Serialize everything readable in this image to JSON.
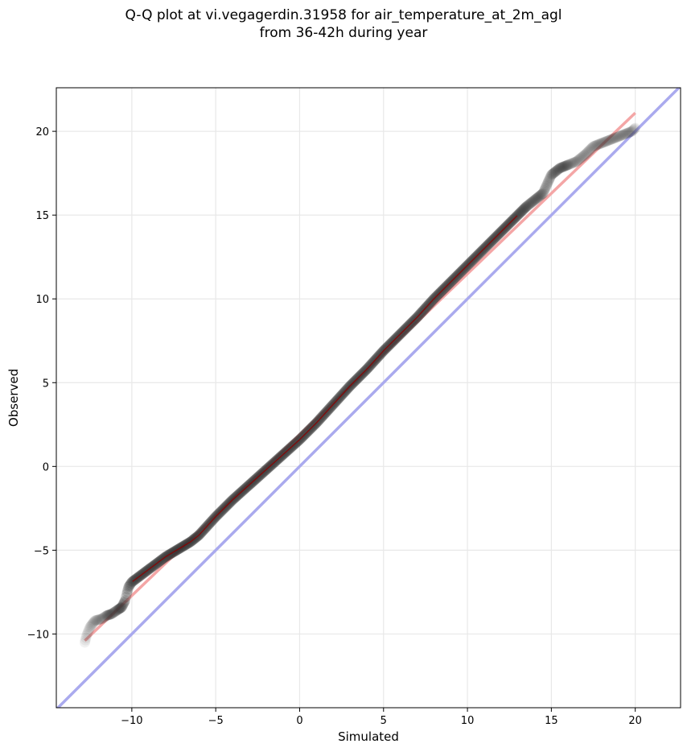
{
  "chart_data": {
    "type": "scatter",
    "title": "Q-Q plot at vi.vegagerdin.31958 for air_temperature_at_2m_agl",
    "subtitle": "from 36-42h during year",
    "xlabel": "Simulated",
    "ylabel": "Observed",
    "xlim": [
      -14.5,
      22.7
    ],
    "ylim": [
      -14.4,
      22.6
    ],
    "xticks": [
      -10,
      -5,
      0,
      5,
      10,
      15,
      20
    ],
    "xtick_labels": [
      "−10",
      "−5",
      "0",
      "5",
      "10",
      "15",
      "20"
    ],
    "yticks": [
      -10,
      -5,
      0,
      5,
      10,
      15,
      20
    ],
    "ytick_labels": [
      "−10",
      "−5",
      "0",
      "5",
      "10",
      "15",
      "20"
    ],
    "grid": true,
    "identity_line": {
      "from": [
        -14.5,
        -14.5
      ],
      "to": [
        22.7,
        22.7
      ],
      "color": "#aaaaee"
    },
    "fit_line": {
      "from": [
        -12.8,
        -10.4
      ],
      "to": [
        20.0,
        21.1
      ],
      "color": "#f4a6a6"
    },
    "colors": {
      "points": "#333333",
      "fit": "#f4a6a6",
      "identity": "#aaaaee",
      "median": "#8b0000"
    },
    "quantiles": {
      "x": [
        -12.8,
        -12.7,
        -12.5,
        -12.2,
        -11.8,
        -11.5,
        -11.2,
        -10.9,
        -10.6,
        -10.4,
        -10.3,
        -10.2,
        -10.0,
        -9.6,
        -9.2,
        -8.8,
        -8.4,
        -8.0,
        -7.5,
        -7.0,
        -6.5,
        -6.0,
        -5.0,
        -4.0,
        -3.0,
        -2.0,
        -1.0,
        0.0,
        1.0,
        2.0,
        3.0,
        4.0,
        5.0,
        6.0,
        7.0,
        8.0,
        9.0,
        10.0,
        11.0,
        12.0,
        12.8,
        13.5,
        14.0,
        14.5,
        15.0,
        15.5,
        16.0,
        16.5,
        17.0,
        17.5,
        19.8,
        20.0
      ],
      "y": [
        -10.5,
        -10.1,
        -9.6,
        -9.2,
        -9.1,
        -8.9,
        -8.8,
        -8.6,
        -8.4,
        -8.0,
        -7.6,
        -7.2,
        -6.9,
        -6.6,
        -6.3,
        -6.0,
        -5.7,
        -5.4,
        -5.1,
        -4.8,
        -4.5,
        -4.1,
        -3.0,
        -2.0,
        -1.1,
        -0.2,
        0.7,
        1.6,
        2.6,
        3.7,
        4.8,
        5.8,
        6.9,
        7.9,
        8.9,
        10.0,
        11.0,
        12.0,
        13.0,
        14.0,
        14.8,
        15.5,
        15.9,
        16.3,
        17.4,
        17.8,
        18.0,
        18.2,
        18.6,
        19.1,
        20.0,
        20.2
      ]
    }
  }
}
